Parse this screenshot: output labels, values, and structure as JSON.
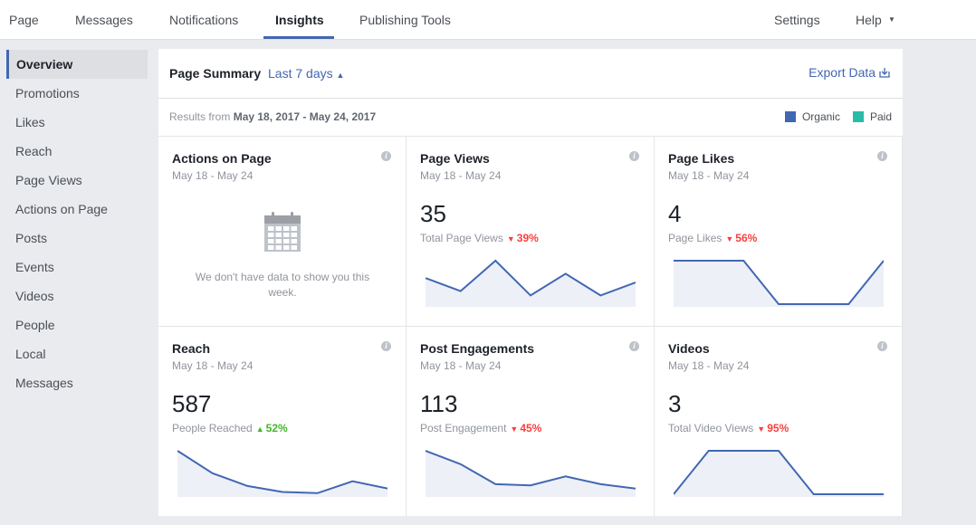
{
  "nav": {
    "tabs": [
      "Page",
      "Messages",
      "Notifications",
      "Insights",
      "Publishing Tools"
    ],
    "active": 3,
    "right": [
      "Settings",
      "Help"
    ]
  },
  "sidebar": {
    "items": [
      "Overview",
      "Promotions",
      "Likes",
      "Reach",
      "Page Views",
      "Actions on Page",
      "Posts",
      "Events",
      "Videos",
      "People",
      "Local",
      "Messages"
    ],
    "active": 0
  },
  "summary": {
    "title": "Page Summary",
    "period": "Last 7 days",
    "export": "Export Data",
    "results_prefix": "Results from",
    "results_range": "May 18, 2017 - May 24, 2017",
    "legend": [
      {
        "name": "Organic",
        "color": "#4267b2"
      },
      {
        "name": "Paid",
        "color": "#2abba7"
      }
    ]
  },
  "cards": [
    {
      "title": "Actions on Page",
      "dates": "May 18 - May 24",
      "empty": "We don't have data to show you this week."
    },
    {
      "title": "Page Views",
      "dates": "May 18 - May 24",
      "value": 35,
      "label": "Total Page Views",
      "change": "39%",
      "direction": "down",
      "trend": [
        6,
        3,
        10,
        2,
        7,
        2,
        5
      ]
    },
    {
      "title": "Page Likes",
      "dates": "May 18 - May 24",
      "value": 4,
      "label": "Page Likes",
      "change": "56%",
      "direction": "down",
      "trend": [
        1,
        1,
        1,
        0,
        0,
        0,
        1
      ]
    },
    {
      "title": "Reach",
      "dates": "May 18 - May 24",
      "value": 587,
      "label": "People Reached",
      "change": "52%",
      "direction": "up",
      "trend": [
        269,
        130,
        51,
        14,
        7,
        80,
        36
      ]
    },
    {
      "title": "Post Engagements",
      "dates": "May 18 - May 24",
      "value": 113,
      "label": "Post Engagement",
      "change": "45%",
      "direction": "down",
      "trend": [
        39,
        27,
        9,
        8,
        16,
        9,
        5
      ]
    },
    {
      "title": "Videos",
      "dates": "May 18 - May 24",
      "value": 3,
      "label": "Total Video Views",
      "change": "95%",
      "direction": "down",
      "trend": [
        0,
        1,
        1,
        1,
        0,
        0,
        0
      ]
    }
  ]
}
